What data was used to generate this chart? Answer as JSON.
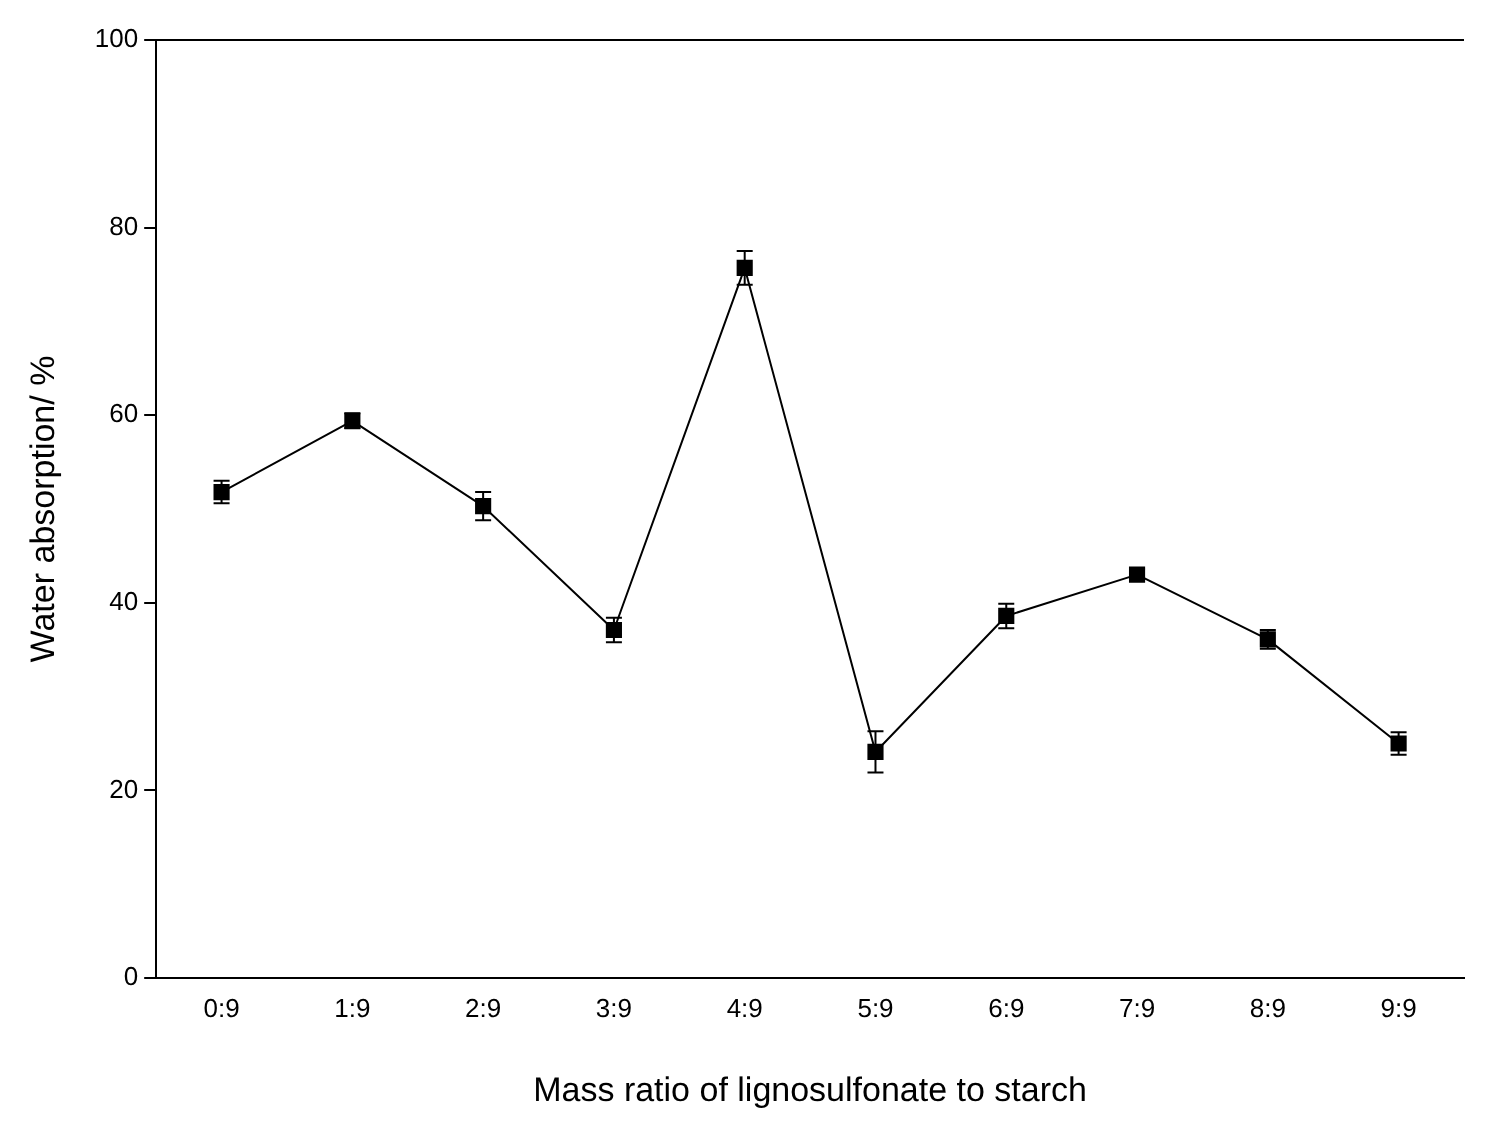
{
  "chart_data": {
    "type": "line",
    "xlabel": "Mass ratio of lignosulfonate to starch",
    "ylabel": "Water absorption/ %",
    "categories": [
      "0:9",
      "1:9",
      "2:9",
      "3:9",
      "4:9",
      "5:9",
      "6:9",
      "7:9",
      "8:9",
      "9:9"
    ],
    "series": [
      {
        "color": "#000000",
        "values": [
          51.8,
          59.4,
          50.3,
          37.1,
          75.7,
          24.1,
          38.6,
          43.0,
          36.1,
          25.0
        ],
        "errors": [
          1.2,
          0.8,
          1.5,
          1.3,
          1.8,
          2.2,
          1.3,
          0.6,
          1.0,
          1.2
        ]
      }
    ],
    "ylim": [
      0,
      100
    ],
    "yticks": [
      0,
      20,
      40,
      60,
      80,
      100
    ],
    "grid": false,
    "legend": false,
    "marker": "square",
    "line_style": "solid"
  }
}
